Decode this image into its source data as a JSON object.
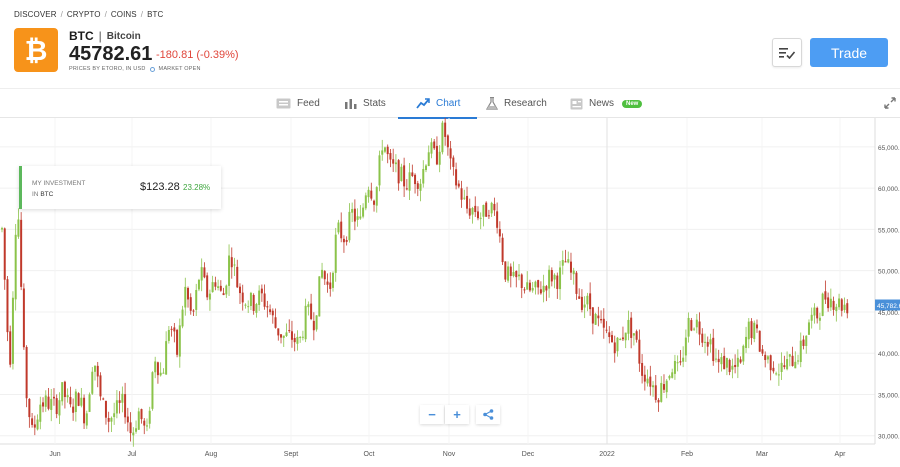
{
  "breadcrumb": [
    "DISCOVER",
    "CRYPTO",
    "COINS",
    "BTC"
  ],
  "asset": {
    "ticker": "BTC",
    "name": "Bitcoin",
    "price": "45782.61",
    "change": "-180.81 (-0.39%)",
    "price_source": "PRICES BY ETORO, IN USD",
    "market_status": "MARKET OPEN",
    "logo_symbol": "₿",
    "logo_color": "#f7931a"
  },
  "actions": {
    "trade_label": "Trade",
    "watchlist_icon": "watchlist-icon"
  },
  "tabs": [
    {
      "label": "Feed",
      "icon": "feed-icon"
    },
    {
      "label": "Stats",
      "icon": "stats-icon"
    },
    {
      "label": "Chart",
      "icon": "chart-icon",
      "active": true
    },
    {
      "label": "Research",
      "icon": "flask-icon"
    },
    {
      "label": "News",
      "icon": "news-icon",
      "badge": "New"
    }
  ],
  "investment": {
    "label_line1": "MY INVESTMENT",
    "label_line2_prefix": "IN",
    "label_line2_ticker": "BTC",
    "value": "$123.28",
    "percent": "23.28%"
  },
  "colors": {
    "up": "#8bc34a",
    "down": "#c0392b",
    "accent": "#2a7bd5",
    "trade": "#4d9df3"
  },
  "chart_data": {
    "type": "candlestick",
    "x_labels": [
      "Jun",
      "Jul",
      "Aug",
      "Sept",
      "Oct",
      "Nov",
      "Dec",
      "2022",
      "Feb",
      "Mar",
      "Apr"
    ],
    "y_ticks": [
      "65,000.",
      "60,000.",
      "55,000.",
      "50,000.",
      "45,000.",
      "40,000.",
      "35,000.",
      "30,000."
    ],
    "ylim": [
      29000,
      68500
    ],
    "last_price_label": "45,782.6",
    "grid": true,
    "close_path": [
      [
        55000,
        38000
      ],
      [
        60000,
        36500
      ],
      [
        30000,
        34000
      ],
      [
        34000,
        33500
      ],
      [
        35500,
        33000
      ],
      [
        35000,
        32000
      ],
      [
        40000,
        34000
      ],
      [
        32000,
        33000
      ],
      [
        34000,
        30000
      ],
      [
        33000,
        29800
      ],
      [
        40000,
        37000
      ],
      [
        44000,
        40000
      ],
      [
        48000,
        44000
      ],
      [
        50000,
        47000
      ],
      [
        49000,
        46500
      ],
      [
        52500,
        48000
      ],
      [
        46500,
        46000
      ],
      [
        47000,
        45500
      ],
      [
        43000,
        42000
      ],
      [
        42000,
        41000
      ],
      [
        45000,
        44000
      ],
      [
        50000,
        47500
      ],
      [
        55000,
        54000
      ],
      [
        57000,
        55500
      ],
      [
        61000,
        58500
      ],
      [
        66000,
        62500
      ],
      [
        62000,
        60500
      ],
      [
        61500,
        61000
      ],
      [
        65000,
        63500
      ],
      [
        67500,
        62000
      ],
      [
        60000,
        57500
      ],
      [
        57500,
        56500
      ],
      [
        58000,
        56500
      ],
      [
        50000,
        48500
      ],
      [
        49000,
        47500
      ],
      [
        47500,
        48000
      ],
      [
        49500,
        49000
      ],
      [
        51000,
        49000
      ],
      [
        46500,
        46000
      ],
      [
        44000,
        42500
      ],
      [
        41500,
        41000
      ],
      [
        43500,
        42500
      ],
      [
        38000,
        37000
      ],
      [
        35000,
        36500
      ],
      [
        38500,
        37500
      ],
      [
        43500,
        44000
      ],
      [
        42500,
        41500
      ],
      [
        38500,
        39000
      ],
      [
        38000,
        38500
      ],
      [
        43000,
        42500
      ],
      [
        39500,
        39000
      ],
      [
        38000,
        38500
      ],
      [
        39500,
        40500
      ],
      [
        44000,
        44500
      ],
      [
        47000,
        46500
      ],
      [
        46000,
        45800
      ]
    ]
  },
  "chart_controls": {
    "zoom_out": "−",
    "zoom_in": "+",
    "share_icon": "share-icon"
  }
}
